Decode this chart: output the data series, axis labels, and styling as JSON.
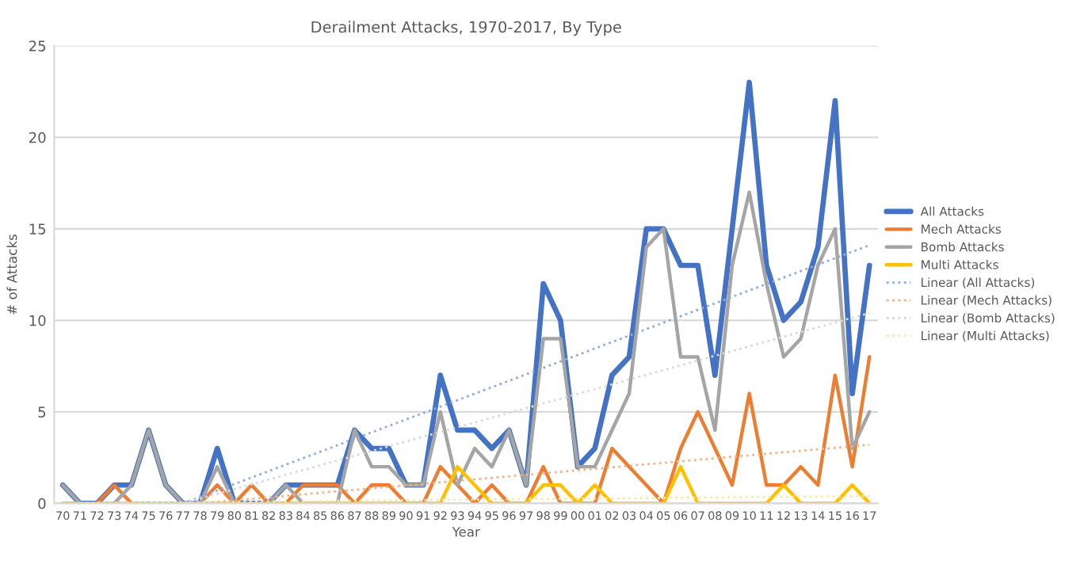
{
  "chart_data": {
    "type": "line",
    "title": "Derailment Attacks, 1970-2017, By Type",
    "xlabel": "Year",
    "ylabel": "# of Attacks",
    "categories": [
      "70",
      "71",
      "72",
      "73",
      "74",
      "75",
      "76",
      "77",
      "78",
      "79",
      "80",
      "81",
      "82",
      "83",
      "84",
      "85",
      "86",
      "87",
      "88",
      "89",
      "90",
      "91",
      "92",
      "93",
      "94",
      "95",
      "96",
      "97",
      "98",
      "99",
      "00",
      "01",
      "02",
      "03",
      "04",
      "05",
      "06",
      "07",
      "08",
      "09",
      "10",
      "11",
      "12",
      "13",
      "14",
      "15",
      "16",
      "17"
    ],
    "series": [
      {
        "name": "All Attacks",
        "color": "#4472c4",
        "line_style": "solid",
        "values": [
          1,
          0,
          0,
          1,
          1,
          4,
          1,
          0,
          0,
          3,
          0,
          0,
          0,
          1,
          1,
          1,
          1,
          4,
          3,
          3,
          1,
          1,
          7,
          4,
          4,
          3,
          4,
          1,
          12,
          10,
          2,
          3,
          7,
          8,
          15,
          15,
          13,
          13,
          7,
          15,
          23,
          13,
          10,
          11,
          14,
          22,
          6,
          13
        ]
      },
      {
        "name": "Mech Attacks",
        "color": "#ed7d31",
        "line_style": "solid",
        "values": [
          0,
          0,
          0,
          1,
          0,
          0,
          0,
          0,
          0,
          1,
          0,
          1,
          0,
          0,
          1,
          1,
          1,
          0,
          1,
          1,
          0,
          0,
          2,
          1,
          0,
          1,
          0,
          0,
          2,
          0,
          0,
          0,
          3,
          2,
          1,
          0,
          3,
          5,
          3,
          1,
          6,
          1,
          1,
          2,
          1,
          7,
          2,
          8
        ]
      },
      {
        "name": "Bomb Attacks",
        "color": "#a5a5a5",
        "line_style": "solid",
        "values": [
          1,
          0,
          0,
          0,
          1,
          4,
          1,
          0,
          0,
          2,
          0,
          0,
          0,
          1,
          0,
          0,
          0,
          4,
          2,
          2,
          1,
          1,
          5,
          1,
          3,
          2,
          4,
          1,
          9,
          9,
          2,
          2,
          4,
          6,
          14,
          15,
          8,
          8,
          4,
          13,
          17,
          12,
          8,
          9,
          13,
          15,
          3,
          5
        ]
      },
      {
        "name": "Multi Attacks",
        "color": "#ffc000",
        "line_style": "solid",
        "values": [
          0,
          0,
          0,
          0,
          0,
          0,
          0,
          0,
          0,
          0,
          0,
          0,
          0,
          0,
          0,
          0,
          0,
          0,
          0,
          0,
          0,
          0,
          0,
          2,
          1,
          0,
          0,
          0,
          1,
          1,
          0,
          1,
          0,
          0,
          0,
          0,
          2,
          0,
          0,
          0,
          0,
          0,
          1,
          0,
          0,
          0,
          1,
          0
        ]
      },
      {
        "name": "Linear (All Attacks)",
        "color": "#8faadc",
        "line_style": "dotted",
        "x": [
          "77",
          "17"
        ],
        "values": [
          0,
          14.1
        ]
      },
      {
        "name": "Linear (Mech Attacks)",
        "color": "#f4b183",
        "line_style": "dotted",
        "x": [
          "78",
          "17"
        ],
        "values": [
          0,
          3.2
        ]
      },
      {
        "name": "Linear (Bomb Attacks)",
        "color": "#d9d9d9",
        "line_style": "dotted",
        "x": [
          "77",
          "17"
        ],
        "values": [
          0,
          10.4
        ]
      },
      {
        "name": "Linear (Multi Attacks)",
        "color": "#ffe699",
        "line_style": "dotted",
        "x": [
          "70",
          "17"
        ],
        "values": [
          0,
          0.4
        ]
      }
    ],
    "ylim": [
      0,
      25
    ],
    "yticks": [
      0,
      5,
      10,
      15,
      20,
      25
    ],
    "grid": "y",
    "legend": "right"
  }
}
